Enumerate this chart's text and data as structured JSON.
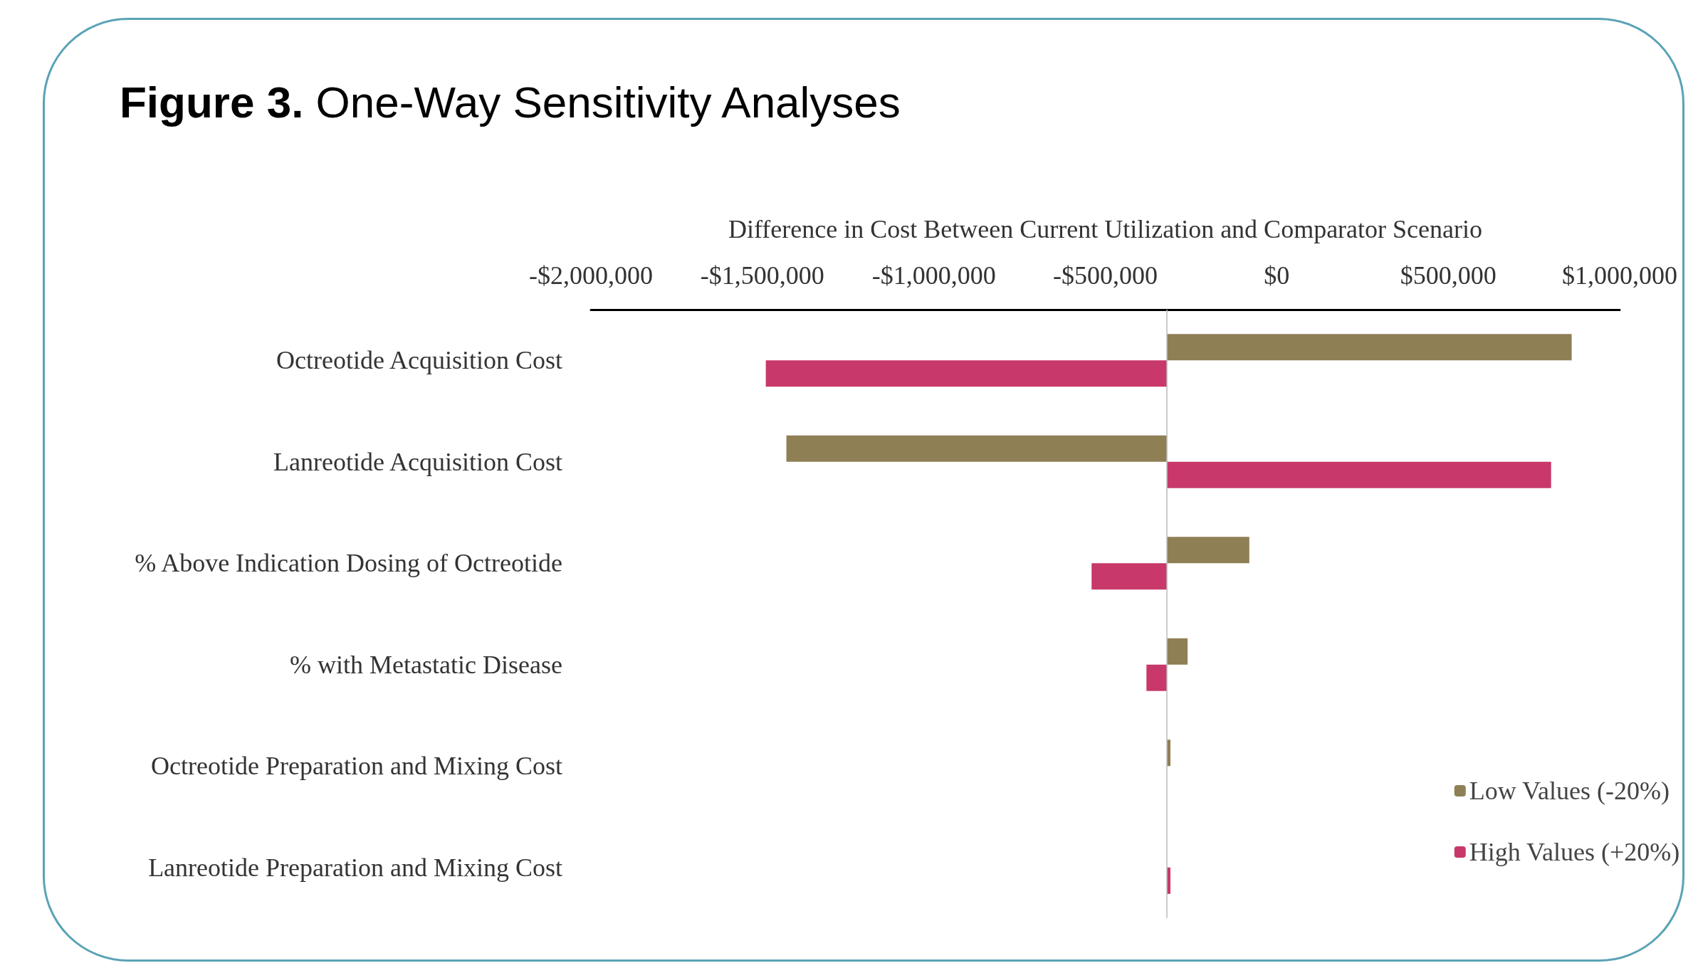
{
  "chart_data": {
    "type": "bar",
    "orientation": "horizontal",
    "title": "Figure 3. One-Way Sensitivity Analyses",
    "xlabel": "Difference in Cost Between Current Utilization and Comparator Scenario",
    "categories": [
      "Octreotide Acquisition Cost",
      "Lanreotide Acquisition Cost",
      "% Above Indication Dosing of Octreotide",
      "% with Metastatic Disease",
      "Octreotide Preparation and Mixing Cost",
      "Lanreotide Preparation and Mixing Cost"
    ],
    "series": [
      {
        "name": "Low Values (-20%)",
        "color": "#8f7f55",
        "base": [
          -320000,
          -320000,
          -320000,
          -320000,
          -320000,
          null
        ],
        "values": [
          1180000,
          -1110000,
          240000,
          60000,
          10000,
          null
        ]
      },
      {
        "name": "High Values (+20%)",
        "color": "#c8386a",
        "base": [
          -320000,
          -320000,
          -320000,
          -320000,
          null,
          -320000
        ],
        "values": [
          -1170000,
          1120000,
          -220000,
          -60000,
          null,
          10000
        ]
      }
    ],
    "ref_lines": [
      {
        "axis": "x",
        "value": -320000,
        "color": "#bbbbbb"
      }
    ],
    "xlim": [
      -2000000,
      1000000
    ],
    "xticks": [
      {
        "value": -2000000,
        "label": "-$2,000,000"
      },
      {
        "value": -1500000,
        "label": "-$1,500,000"
      },
      {
        "value": -1000000,
        "label": "-$1,000,000"
      },
      {
        "value": -500000,
        "label": "-$500,000"
      },
      {
        "value": 0,
        "label": "$0"
      },
      {
        "value": 500000,
        "label": "$500,000"
      },
      {
        "value": 1000000,
        "label": "$1,000,000"
      }
    ],
    "grid": false,
    "legend": "bottom right"
  }
}
